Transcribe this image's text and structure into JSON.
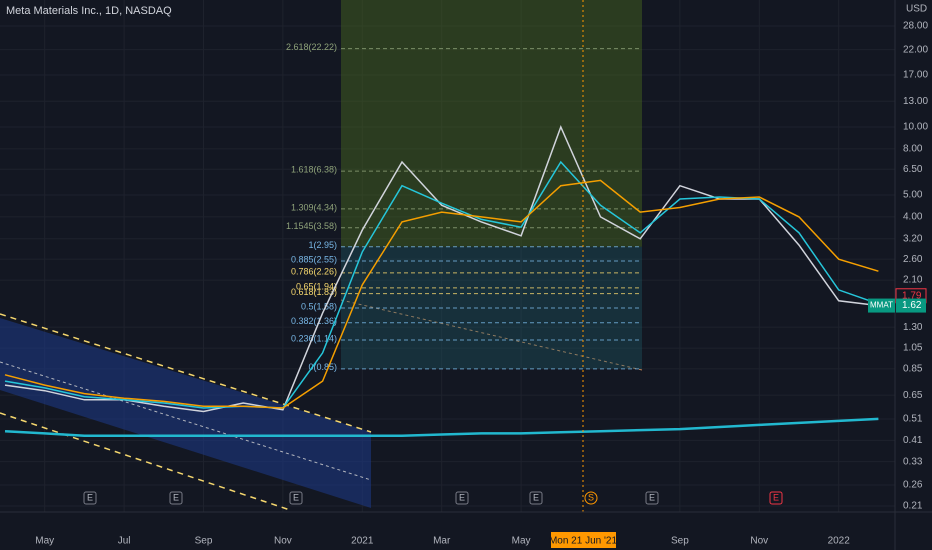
{
  "chart_data": {
    "type": "line",
    "title": "Meta Materials Inc., 1D, NASDAQ",
    "currency": "USD",
    "log_scale": true,
    "grid": true,
    "categories": [
      null,
      "May",
      null,
      "Jul",
      null,
      "Sep",
      null,
      "Nov",
      null,
      "2021",
      null,
      "Mar",
      null,
      "May",
      null,
      null,
      null,
      "Sep",
      null,
      "Nov",
      null,
      "2022",
      null
    ],
    "series": [
      {
        "color": "#d1d4dc",
        "values": [
          0.72,
          0.68,
          0.62,
          0.62,
          0.58,
          0.55,
          0.6,
          0.56,
          1.5,
          3.5,
          7.0,
          4.5,
          3.8,
          3.3,
          10.0,
          4.0,
          3.2,
          5.5,
          4.8,
          4.8,
          3.0,
          1.7,
          1.62
        ]
      },
      {
        "color": "#26c6da",
        "values": [
          0.75,
          0.7,
          0.64,
          0.62,
          0.6,
          0.57,
          0.58,
          0.57,
          1.0,
          2.8,
          5.5,
          4.6,
          3.9,
          3.6,
          7.0,
          4.5,
          3.4,
          4.8,
          4.9,
          4.8,
          3.4,
          1.9,
          1.65
        ]
      },
      {
        "color": "#f59f00",
        "values": [
          0.8,
          0.72,
          0.66,
          0.63,
          0.61,
          0.58,
          0.58,
          0.57,
          0.75,
          2.0,
          3.8,
          4.2,
          4.0,
          3.8,
          5.5,
          5.8,
          4.2,
          4.4,
          4.8,
          4.9,
          4.0,
          2.6,
          2.3
        ]
      },
      {
        "color": "#22b8cf",
        "values": [
          0.45,
          0.44,
          0.43,
          0.43,
          0.43,
          0.43,
          0.43,
          0.43,
          0.43,
          0.43,
          0.43,
          0.435,
          0.44,
          0.44,
          0.445,
          0.45,
          0.455,
          0.46,
          0.47,
          0.48,
          0.49,
          0.5,
          0.51
        ]
      }
    ],
    "ylim": [
      0.1975,
      36.5
    ],
    "yticks": [
      {
        "value": 28,
        "label": "28.00"
      },
      {
        "value": 22,
        "label": "22.00"
      },
      {
        "value": 17,
        "label": "17.00"
      },
      {
        "value": 13,
        "label": "13.00"
      },
      {
        "value": 10,
        "label": "10.00"
      },
      {
        "value": 8,
        "label": "8.00"
      },
      {
        "value": 6.5,
        "label": "6.50"
      },
      {
        "value": 5,
        "label": "5.00"
      },
      {
        "value": 4,
        "label": "4.00"
      },
      {
        "value": 3.2,
        "label": "3.20"
      },
      {
        "value": 2.6,
        "label": "2.60"
      },
      {
        "value": 2.1,
        "label": "2.10"
      },
      {
        "value": 1.3,
        "label": "1.30"
      },
      1.05,
      0.85,
      0.65,
      0.51,
      0.41,
      0.33,
      0.26,
      0.21
    ],
    "fib_levels": [
      {
        "value": 22.22,
        "label": "2.618(22.22)",
        "color": "#8fa37a"
      },
      {
        "value": 6.38,
        "label": "1.618(6.38)",
        "color": "#8fa37a"
      },
      {
        "value": 4.34,
        "label": "1.309(4.34)",
        "color": "#8fa37a"
      },
      {
        "value": 3.58,
        "label": "1.1545(3.58)",
        "color": "#8fa37a"
      },
      {
        "value": 2.95,
        "label": "1(2.95)",
        "color": "#78b7e6"
      },
      {
        "value": 2.55,
        "label": "0.885(2.55)",
        "color": "#78b7e6"
      },
      {
        "value": 2.26,
        "label": "0.786(2.26)",
        "color": "#f5d76e"
      },
      {
        "value": 1.94,
        "label": "0.65(1.94)",
        "color": "#f5d76e"
      },
      {
        "value": 1.83,
        "label": "0.618(1.83)",
        "color": "#f5d76e"
      },
      {
        "value": 1.58,
        "label": "0.5(1.58)",
        "color": "#78b7e6"
      },
      {
        "value": 1.36,
        "label": "0.382(1.36)",
        "color": "#78b7e6"
      },
      {
        "value": 1.14,
        "label": "0.236(1.14)",
        "color": "#78b7e6"
      },
      {
        "value": 0.85,
        "label": "0(0.85)",
        "color": "#78b7e6"
      }
    ],
    "ma_price": 1.79,
    "last_price": 1.62,
    "ticker": "MMAT",
    "crosshair_label": "Mon 21 Jun '21",
    "events": [
      "E",
      "E",
      "E",
      "E",
      "E",
      "S",
      "E",
      "E"
    ]
  }
}
